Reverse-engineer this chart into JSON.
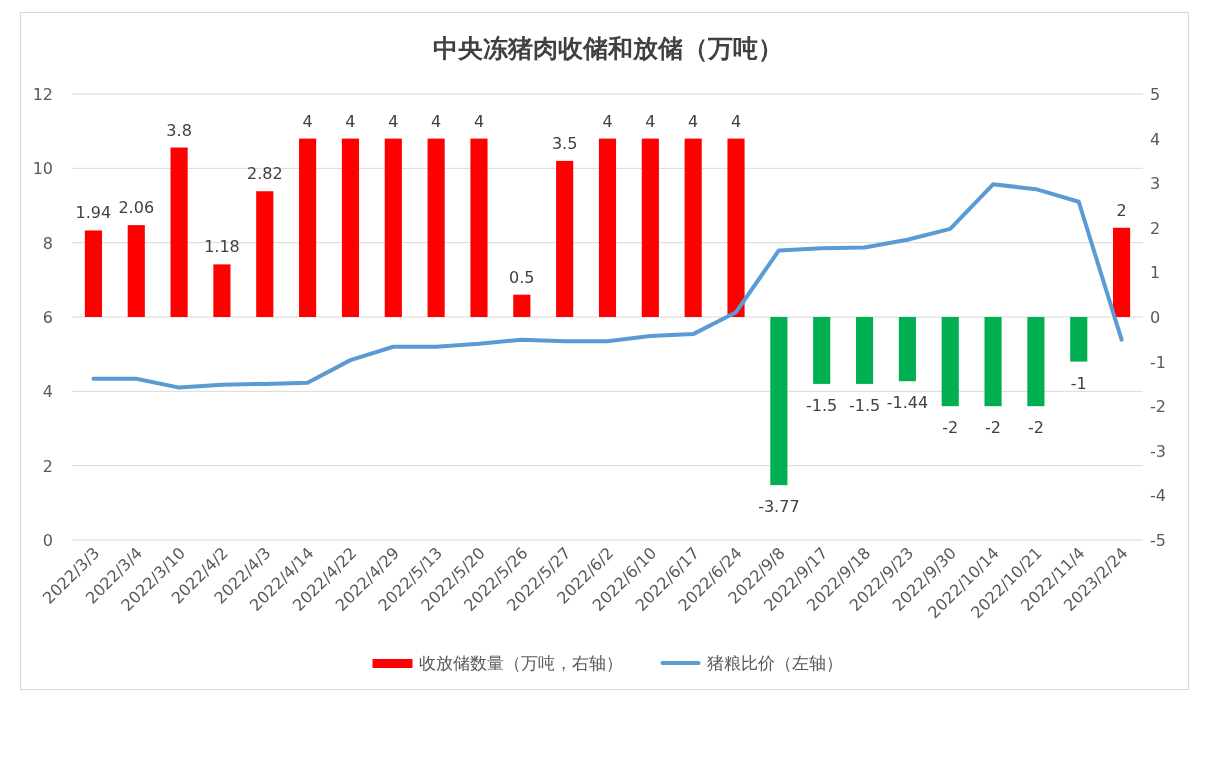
{
  "chart_data": {
    "type": "bar",
    "title": "中央冻猪肉收储和放储（万吨）",
    "categories": [
      "2022/3/3",
      "2022/3/4",
      "2022/3/10",
      "2022/4/2",
      "2022/4/3",
      "2022/4/14",
      "2022/4/22",
      "2022/4/29",
      "2022/5/13",
      "2022/5/20",
      "2022/5/26",
      "2022/5/27",
      "2022/6/2",
      "2022/6/10",
      "2022/6/17",
      "2022/6/24",
      "2022/9/8",
      "2022/9/17",
      "2022/9/18",
      "2022/9/23",
      "2022/9/30",
      "2022/10/14",
      "2022/10/21",
      "2022/11/4",
      "2023/2/24"
    ],
    "series": [
      {
        "axis": "y2",
        "name": "收放储数量（万吨，右轴）",
        "color": "#ff0000",
        "colors": [
          "#ff0000",
          "#ff0000",
          "#ff0000",
          "#ff0000",
          "#ff0000",
          "#ff0000",
          "#ff0000",
          "#ff0000",
          "#ff0000",
          "#ff0000",
          "#ff0000",
          "#ff0000",
          "#ff0000",
          "#ff0000",
          "#ff0000",
          "#ff0000",
          "#00b050",
          "#00b050",
          "#00b050",
          "#00b050",
          "#00b050",
          "#00b050",
          "#00b050",
          "#00b050",
          "#ff0000"
        ],
        "values": [
          1.94,
          2.06,
          3.8,
          1.18,
          2.82,
          4,
          4,
          4,
          4,
          4,
          0.5,
          3.5,
          4,
          4,
          4,
          4,
          -3.77,
          -1.5,
          -1.5,
          -1.44,
          -2,
          -2,
          -2,
          -1,
          2
        ],
        "value_labels": [
          "1.94",
          "2.06",
          "3.8",
          "1.18",
          "2.82",
          "4",
          "4",
          "4",
          "4",
          "4",
          "0.5",
          "3.5",
          "4",
          "4",
          "4",
          "4",
          "-3.77",
          "-1.5",
          "-1.5",
          "-1.44",
          "-2",
          "-2",
          "-2",
          "-1",
          "2"
        ]
      },
      {
        "type": "line",
        "axis": "y",
        "name": "猪粮比价（左轴）",
        "color": "#5b9bd5",
        "values": [
          4.34,
          4.34,
          4.1,
          4.18,
          4.2,
          4.23,
          4.84,
          5.2,
          5.2,
          5.28,
          5.39,
          5.35,
          5.35,
          5.49,
          5.54,
          6.13,
          7.79,
          7.85,
          7.87,
          8.08,
          8.37,
          9.57,
          9.44,
          9.1,
          5.39
        ]
      }
    ],
    "ylim": [
      0,
      12
    ],
    "yticks": [
      0,
      2,
      4,
      6,
      8,
      10,
      12
    ],
    "y2lim": [
      -5,
      5
    ],
    "y2ticks": [
      -5,
      -4,
      -3,
      -2,
      -1,
      0,
      1,
      2,
      3,
      4,
      5
    ],
    "grid": "y",
    "legend": "bottom"
  }
}
